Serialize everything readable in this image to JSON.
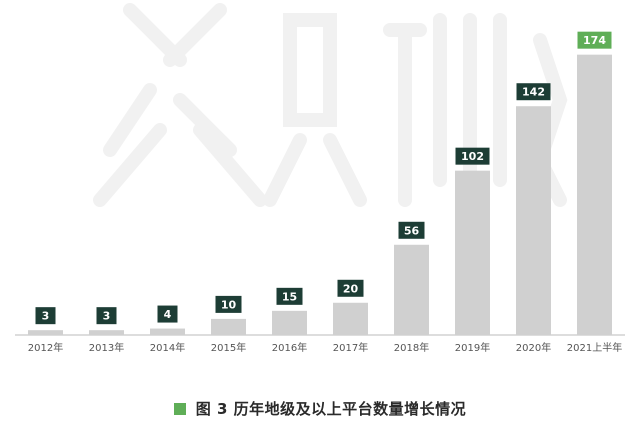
{
  "chart_data": {
    "type": "bar",
    "categories": [
      "2012年",
      "2013年",
      "2014年",
      "2015年",
      "2016年",
      "2017年",
      "2018年",
      "2019年",
      "2020年",
      "2021上半年"
    ],
    "values": [
      3,
      3,
      4,
      10,
      15,
      20,
      56,
      102,
      142,
      174
    ],
    "ylim": [
      0,
      180
    ],
    "grid": false,
    "legend": "none",
    "colors": {
      "bar": "#d0d0d0",
      "label_bg": "#1d3d35",
      "label_bg_highlight": "#5fae57",
      "label_text": "#ffffff",
      "axis": "#bbbbbb",
      "tick_text": "#555555"
    }
  },
  "caption": {
    "marker_color": "#5fae57",
    "text": "图 3 历年地级及以上平台数量增长情况"
  }
}
